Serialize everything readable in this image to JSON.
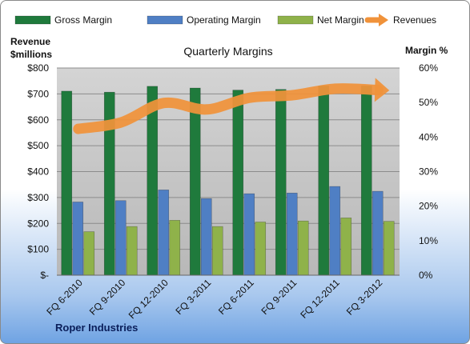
{
  "footer": "Roper Industries",
  "chart_data": {
    "type": "bar",
    "title": "Quarterly Margins",
    "ylabel_left": [
      "Revenue",
      "$millions"
    ],
    "ylabel_right": "Margin %",
    "categories": [
      "FQ 6-2010",
      "FQ 9-2010",
      "FQ 12-2010",
      "FQ 3-2011",
      "FQ 6-2011",
      "FQ 9-2011",
      "FQ 12-2011",
      "FQ 3-2012"
    ],
    "left_axis": {
      "min": 0,
      "max": 800,
      "ticks": [
        "$-",
        "$100",
        "$200",
        "$300",
        "$400",
        "$500",
        "$600",
        "$700",
        "$800"
      ]
    },
    "right_axis": {
      "min": 0,
      "max": 60,
      "ticks": [
        "0%",
        "10%",
        "20%",
        "30%",
        "40%",
        "50%",
        "60%"
      ]
    },
    "series": [
      {
        "name": "Gross Margin",
        "axis": "right",
        "kind": "bar",
        "color": "#1f7a3c",
        "values": [
          53.3,
          53.0,
          54.7,
          54.2,
          53.6,
          53.8,
          54.8,
          54.8
        ]
      },
      {
        "name": "Operating Margin",
        "axis": "right",
        "kind": "bar",
        "color": "#4f7fc4",
        "values": [
          21.2,
          21.6,
          24.7,
          22.2,
          23.6,
          23.8,
          25.7,
          24.3
        ]
      },
      {
        "name": "Net Margin",
        "axis": "right",
        "kind": "bar",
        "color": "#8fb24a",
        "values": [
          12.6,
          14.1,
          15.9,
          14.1,
          15.4,
          15.7,
          16.6,
          15.6
        ]
      },
      {
        "name": "Revenues",
        "axis": "left",
        "kind": "line",
        "color": "#f0923a",
        "values": [
          565,
          590,
          665,
          640,
          685,
          695,
          720,
          715
        ]
      }
    ],
    "grid": true,
    "legend": "top"
  }
}
